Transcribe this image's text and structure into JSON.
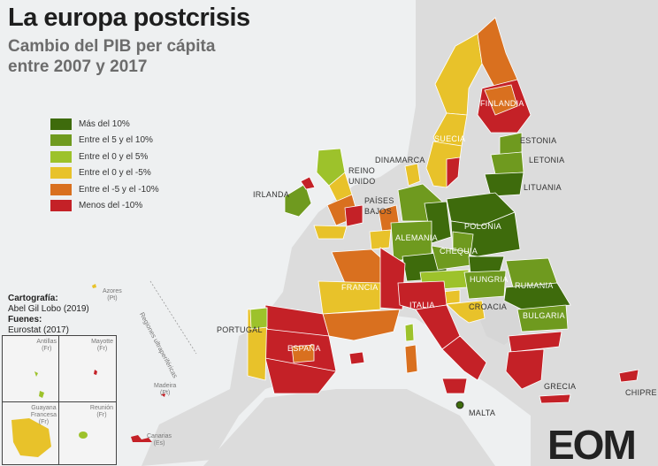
{
  "title": "La europa postcrisis",
  "subtitle_line1": "Cambio del PIB per cápita",
  "subtitle_line2": "entre 2007 y 2017",
  "legend": [
    {
      "label": "Más del 10%",
      "color": "#3e6b0c"
    },
    {
      "label": "Entre el 5 y el 10%",
      "color": "#6f9a1f"
    },
    {
      "label": "Entre el 0 y el 5%",
      "color": "#9dc22b"
    },
    {
      "label": "Entre el 0 y el -5%",
      "color": "#e8c22a"
    },
    {
      "label": "Entre el -5 y el -10%",
      "color": "#d9701f"
    },
    {
      "label": "Menos del -10%",
      "color": "#c42127"
    }
  ],
  "credits": {
    "cartography_label": "Cartografía:",
    "cartography_value": "Abel Gil Lobo (2019)",
    "sources_label": "Fuenes:",
    "sources_value": "Eurostat (2017)"
  },
  "country_labels": {
    "finlandia": "FINLANDIA",
    "suecia": "SUECIA",
    "estonia": "ESTONIA",
    "letonia": "LETONIA",
    "lituania": "LITUANIA",
    "dinamarca": "DINAMARCA",
    "reino_unido_1": "REINO",
    "reino_unido_2": "UNIDO",
    "irlanda": "IRLANDA",
    "paises_bajos_1": "PAÍSES",
    "paises_bajos_2": "BAJOS",
    "alemania": "ALEMANIA",
    "polonia": "POLONIA",
    "chequia": "CHEQUIA",
    "hungria": "HUNGRIA",
    "rumania": "RUMANIA",
    "bulgaria": "BULGARIA",
    "croacia": "CROACIA",
    "francia": "FRANCIA",
    "italia": "ITALIA",
    "espana": "ESPAÑA",
    "portugal": "PORTUGAL",
    "grecia": "GRECIA",
    "chipre": "CHIPRE",
    "malta": "MALTA"
  },
  "regions": {
    "azores_1": "Azores",
    "azores_2": "(Pt)",
    "ultraperifericas": "Regiones ultraperiféricas",
    "madeira_1": "Madeira",
    "madeira_2": "(Pt)",
    "canarias_1": "Canarias",
    "canarias_2": "(Es)",
    "antillas_1": "Antillas",
    "antillas_2": "(Fr)",
    "mayotte_1": "Mayotte",
    "mayotte_2": "(Fr)",
    "guayana_1": "Guayana",
    "guayana_2": "Francesa",
    "guayana_3": "(Fr)",
    "reunion_1": "Reunión",
    "reunion_2": "(Fr)"
  },
  "logo": "EOM",
  "colors": {
    "sea": "#eef0f1",
    "non_eu_land": "#dcdcdc",
    "border": "#ffffff"
  }
}
